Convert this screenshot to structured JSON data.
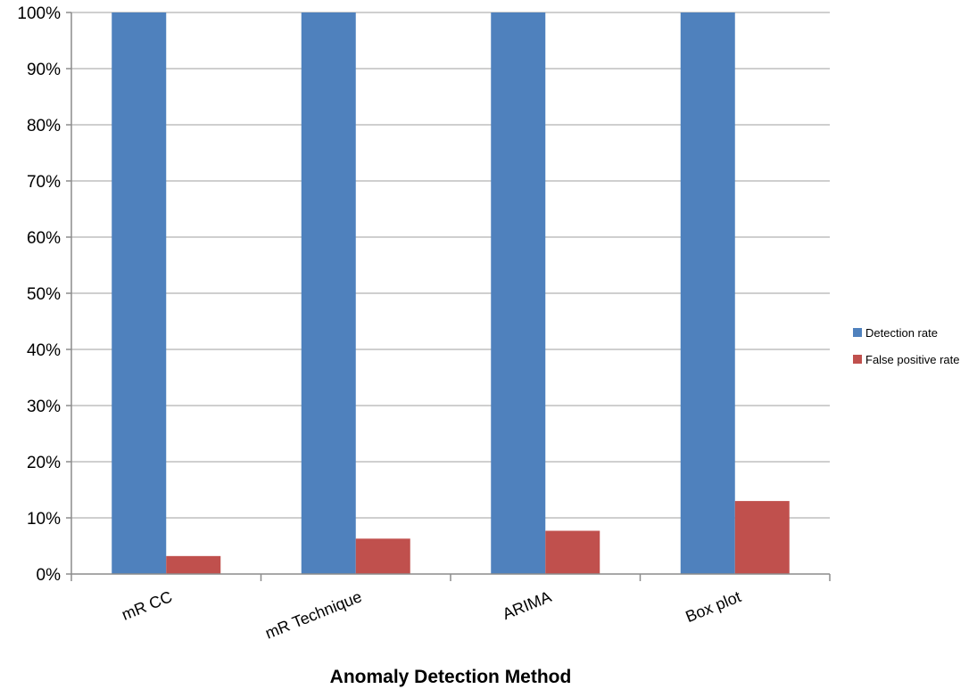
{
  "chart_data": {
    "type": "bar",
    "title": "",
    "xlabel": "Anomaly Detection Method",
    "ylabel": "",
    "categories": [
      "mR CC",
      "mR Technique",
      "ARIMA",
      "Box plot"
    ],
    "series": [
      {
        "name": "Detection rate",
        "color": "#4f81bd",
        "values": [
          100,
          100,
          100,
          100
        ]
      },
      {
        "name": "False positive rate",
        "color": "#c0504d",
        "values": [
          3.2,
          6.3,
          7.7,
          13.0
        ]
      }
    ],
    "ylim": [
      0,
      100
    ],
    "yticks": [
      0,
      10,
      20,
      30,
      40,
      50,
      60,
      70,
      80,
      90,
      100
    ],
    "ytick_suffix": "%",
    "grid": true,
    "legend_position": "right"
  }
}
